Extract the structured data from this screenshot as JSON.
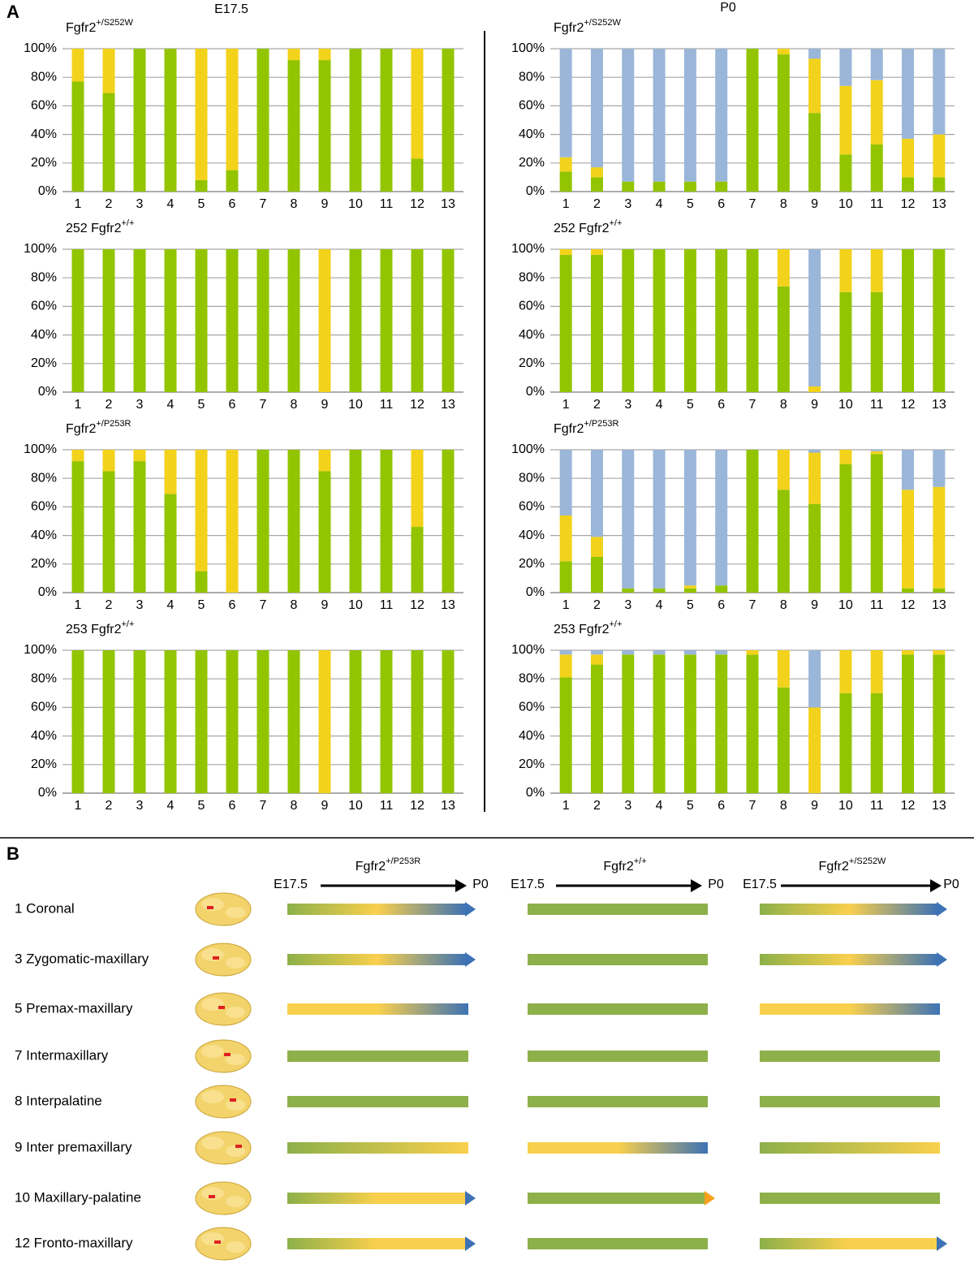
{
  "panel_a": {
    "label": "A",
    "columns": [
      "E17.5",
      "P0"
    ]
  },
  "chart_data": [
    {
      "type": "bar",
      "stacked": true,
      "title": "Fgfr2",
      "title_sup": "+/S252W",
      "categories": [
        "1",
        "2",
        "3",
        "4",
        "5",
        "6",
        "7",
        "8",
        "9",
        "10",
        "11",
        "12",
        "13"
      ],
      "series": [
        {
          "color": "#92c400",
          "values": [
            77,
            69,
            100,
            100,
            8,
            15,
            100,
            92,
            92,
            100,
            100,
            23,
            100
          ]
        },
        {
          "color": "#f2d21b",
          "values": [
            23,
            31,
            0,
            0,
            92,
            85,
            0,
            8,
            8,
            0,
            0,
            77,
            0
          ]
        }
      ],
      "ylim": [
        0,
        100
      ],
      "yticks": [
        {
          "value": 0,
          "label": "0%"
        },
        {
          "value": 20,
          "label": "20%"
        },
        {
          "value": 40,
          "label": "40%"
        },
        {
          "value": 60,
          "label": "60%"
        },
        {
          "value": 80,
          "label": "80%"
        },
        {
          "value": 100,
          "label": "100%"
        }
      ],
      "grid": true
    },
    {
      "type": "bar",
      "stacked": true,
      "title": "Fgfr2",
      "title_sup": "+/S252W",
      "categories": [
        "1",
        "2",
        "3",
        "4",
        "5",
        "6",
        "7",
        "8",
        "9",
        "10",
        "11",
        "12",
        "13"
      ],
      "series": [
        {
          "color": "#92c400",
          "values": [
            14,
            10,
            7,
            7,
            7,
            7,
            100,
            96,
            55,
            26,
            33,
            10,
            10
          ]
        },
        {
          "color": "#f2d21b",
          "values": [
            10,
            7,
            0,
            0,
            0,
            0,
            0,
            4,
            38,
            48,
            45,
            27,
            30
          ]
        },
        {
          "color": "#9ab6d8",
          "values": [
            76,
            83,
            93,
            93,
            93,
            93,
            0,
            0,
            7,
            26,
            22,
            63,
            60
          ]
        }
      ],
      "ylim": [
        0,
        100
      ],
      "yticks": [
        {
          "value": 0,
          "label": "0%"
        },
        {
          "value": 20,
          "label": "20%"
        },
        {
          "value": 40,
          "label": "40%"
        },
        {
          "value": 60,
          "label": "60%"
        },
        {
          "value": 80,
          "label": "80%"
        },
        {
          "value": 100,
          "label": "100%"
        }
      ],
      "grid": true
    },
    {
      "type": "bar",
      "stacked": true,
      "title": "252 Fgfr2",
      "title_sup": "+/+",
      "categories": [
        "1",
        "2",
        "3",
        "4",
        "5",
        "6",
        "7",
        "8",
        "9",
        "10",
        "11",
        "12",
        "13"
      ],
      "series": [
        {
          "color": "#92c400",
          "values": [
            100,
            100,
            100,
            100,
            100,
            100,
            100,
            100,
            0,
            100,
            100,
            100,
            100
          ]
        },
        {
          "color": "#f2d21b",
          "values": [
            0,
            0,
            0,
            0,
            0,
            0,
            0,
            0,
            100,
            0,
            0,
            0,
            0
          ]
        }
      ],
      "ylim": [
        0,
        100
      ],
      "yticks": [
        {
          "value": 0,
          "label": "0%"
        },
        {
          "value": 20,
          "label": "20%"
        },
        {
          "value": 40,
          "label": "40%"
        },
        {
          "value": 60,
          "label": "60%"
        },
        {
          "value": 80,
          "label": "80%"
        },
        {
          "value": 100,
          "label": "100%"
        }
      ],
      "grid": true
    },
    {
      "type": "bar",
      "stacked": true,
      "title": "252 Fgfr2",
      "title_sup": "+/+",
      "categories": [
        "1",
        "2",
        "3",
        "4",
        "5",
        "6",
        "7",
        "8",
        "9",
        "10",
        "11",
        "12",
        "13"
      ],
      "series": [
        {
          "color": "#92c400",
          "values": [
            96,
            96,
            100,
            100,
            100,
            100,
            100,
            74,
            0,
            70,
            70,
            100,
            100
          ]
        },
        {
          "color": "#f2d21b",
          "values": [
            4,
            4,
            0,
            0,
            0,
            0,
            0,
            26,
            4,
            30,
            30,
            0,
            0
          ]
        },
        {
          "color": "#9ab6d8",
          "values": [
            0,
            0,
            0,
            0,
            0,
            0,
            0,
            0,
            96,
            0,
            0,
            0,
            0
          ]
        }
      ],
      "ylim": [
        0,
        100
      ],
      "yticks": [
        {
          "value": 0,
          "label": "0%"
        },
        {
          "value": 20,
          "label": "20%"
        },
        {
          "value": 40,
          "label": "40%"
        },
        {
          "value": 60,
          "label": "60%"
        },
        {
          "value": 80,
          "label": "80%"
        },
        {
          "value": 100,
          "label": "100%"
        }
      ],
      "grid": true
    },
    {
      "type": "bar",
      "stacked": true,
      "title": "Fgfr2",
      "title_sup": "+/P253R",
      "categories": [
        "1",
        "2",
        "3",
        "4",
        "5",
        "6",
        "7",
        "8",
        "9",
        "10",
        "11",
        "12",
        "13"
      ],
      "series": [
        {
          "color": "#92c400",
          "values": [
            92,
            85,
            92,
            69,
            15,
            0,
            100,
            100,
            85,
            100,
            100,
            46,
            100
          ]
        },
        {
          "color": "#f2d21b",
          "values": [
            8,
            15,
            8,
            31,
            85,
            100,
            0,
            0,
            15,
            0,
            0,
            54,
            0
          ]
        }
      ],
      "ylim": [
        0,
        100
      ],
      "yticks": [
        {
          "value": 0,
          "label": "0%"
        },
        {
          "value": 20,
          "label": "20%"
        },
        {
          "value": 40,
          "label": "40%"
        },
        {
          "value": 60,
          "label": "60%"
        },
        {
          "value": 80,
          "label": "80%"
        },
        {
          "value": 100,
          "label": "100%"
        }
      ],
      "grid": true
    },
    {
      "type": "bar",
      "stacked": true,
      "title": "Fgfr2",
      "title_sup": "+/P253R",
      "categories": [
        "1",
        "2",
        "3",
        "4",
        "5",
        "6",
        "7",
        "8",
        "9",
        "10",
        "11",
        "12",
        "13"
      ],
      "series": [
        {
          "color": "#92c400",
          "values": [
            22,
            25,
            3,
            3,
            3,
            5,
            100,
            72,
            62,
            90,
            97,
            3,
            3
          ]
        },
        {
          "color": "#f2d21b",
          "values": [
            32,
            14,
            0,
            0,
            2,
            0,
            0,
            28,
            36,
            10,
            2,
            69,
            71
          ]
        },
        {
          "color": "#9ab6d8",
          "values": [
            46,
            61,
            97,
            97,
            95,
            95,
            0,
            0,
            2,
            0,
            1,
            28,
            26
          ]
        }
      ],
      "ylim": [
        0,
        100
      ],
      "yticks": [
        {
          "value": 0,
          "label": "0%"
        },
        {
          "value": 20,
          "label": "20%"
        },
        {
          "value": 40,
          "label": "40%"
        },
        {
          "value": 60,
          "label": "60%"
        },
        {
          "value": 80,
          "label": "80%"
        },
        {
          "value": 100,
          "label": "100%"
        }
      ],
      "grid": true
    },
    {
      "type": "bar",
      "stacked": true,
      "title": "253 Fgfr2",
      "title_sup": "+/+",
      "categories": [
        "1",
        "2",
        "3",
        "4",
        "5",
        "6",
        "7",
        "8",
        "9",
        "10",
        "11",
        "12",
        "13"
      ],
      "series": [
        {
          "color": "#92c400",
          "values": [
            100,
            100,
            100,
            100,
            100,
            100,
            100,
            100,
            0,
            100,
            100,
            100,
            100
          ]
        },
        {
          "color": "#f2d21b",
          "values": [
            0,
            0,
            0,
            0,
            0,
            0,
            0,
            0,
            100,
            0,
            0,
            0,
            0
          ]
        }
      ],
      "ylim": [
        0,
        100
      ],
      "yticks": [
        {
          "value": 0,
          "label": "0%"
        },
        {
          "value": 20,
          "label": "20%"
        },
        {
          "value": 40,
          "label": "40%"
        },
        {
          "value": 60,
          "label": "60%"
        },
        {
          "value": 80,
          "label": "80%"
        },
        {
          "value": 100,
          "label": "100%"
        }
      ],
      "grid": true
    },
    {
      "type": "bar",
      "stacked": true,
      "title": "253 Fgfr2",
      "title_sup": "+/+",
      "categories": [
        "1",
        "2",
        "3",
        "4",
        "5",
        "6",
        "7",
        "8",
        "9",
        "10",
        "11",
        "12",
        "13"
      ],
      "series": [
        {
          "color": "#92c400",
          "values": [
            81,
            90,
            97,
            97,
            97,
            97,
            97,
            74,
            0,
            70,
            70,
            97,
            97
          ]
        },
        {
          "color": "#f2d21b",
          "values": [
            16,
            7,
            0,
            0,
            0,
            0,
            3,
            26,
            60,
            30,
            30,
            3,
            3
          ]
        },
        {
          "color": "#9ab6d8",
          "values": [
            3,
            3,
            3,
            3,
            3,
            3,
            0,
            0,
            40,
            0,
            0,
            0,
            0
          ]
        }
      ],
      "ylim": [
        0,
        100
      ],
      "yticks": [
        {
          "value": 0,
          "label": "0%"
        },
        {
          "value": 20,
          "label": "20%"
        },
        {
          "value": 40,
          "label": "40%"
        },
        {
          "value": 60,
          "label": "60%"
        },
        {
          "value": 80,
          "label": "80%"
        },
        {
          "value": 100,
          "label": "100%"
        }
      ],
      "grid": true
    }
  ],
  "panel_b": {
    "label": "B",
    "columns": [
      {
        "genotype": "Fgfr2",
        "genotype_sup": "+/P253R",
        "start": "E17.5",
        "end": "P0"
      },
      {
        "genotype": "Fgfr2",
        "genotype_sup": "+/+",
        "start": "E17.5",
        "end": "P0"
      },
      {
        "genotype": "Fgfr2",
        "genotype_sup": "+/S252W",
        "start": "E17.5",
        "end": "P0"
      }
    ],
    "rows": [
      {
        "label": "1 Coronal",
        "cells": [
          {
            "colors": [
              "#8db04a",
              "#f9d04d",
              "#3d72b4"
            ],
            "arrow": "#3d72b4"
          },
          {
            "colors": [
              "#8db04a"
            ]
          },
          {
            "colors": [
              "#8db04a",
              "#f9d04d",
              "#3d72b4"
            ],
            "arrow": "#3d72b4"
          }
        ]
      },
      {
        "label": "3 Zygomatic-maxillary",
        "cells": [
          {
            "colors": [
              "#8db04a",
              "#f9d04d",
              "#3d72b4"
            ],
            "arrow": "#3d72b4"
          },
          {
            "colors": [
              "#8db04a"
            ]
          },
          {
            "colors": [
              "#8db04a",
              "#f9d04d",
              "#3d72b4"
            ],
            "arrow": "#3d72b4"
          }
        ]
      },
      {
        "label": "5 Premax-maxillary",
        "cells": [
          {
            "colors": [
              "#f9d04d",
              "#f9d04d",
              "#3d72b4"
            ]
          },
          {
            "colors": [
              "#8db04a"
            ]
          },
          {
            "colors": [
              "#f9d04d",
              "#f9d04d",
              "#3d72b4"
            ]
          }
        ]
      },
      {
        "label": "7 Intermaxillary",
        "cells": [
          {
            "colors": [
              "#8db04a"
            ]
          },
          {
            "colors": [
              "#8db04a"
            ]
          },
          {
            "colors": [
              "#8db04a"
            ]
          }
        ]
      },
      {
        "label": "8 Interpalatine",
        "cells": [
          {
            "colors": [
              "#8db04a"
            ]
          },
          {
            "colors": [
              "#8db04a"
            ]
          },
          {
            "colors": [
              "#8db04a"
            ]
          }
        ]
      },
      {
        "label": "9 Inter premaxillary",
        "cells": [
          {
            "colors": [
              "#8db04a",
              "#f9d04d"
            ]
          },
          {
            "colors": [
              "#f9d04d",
              "#f9d04d",
              "#3d72b4"
            ]
          },
          {
            "colors": [
              "#8db04a",
              "#f9d04d"
            ]
          }
        ]
      },
      {
        "label": "10 Maxillary-palatine",
        "cells": [
          {
            "colors": [
              "#8db04a",
              "#f9d04d",
              "#f9d04d"
            ],
            "arrow": "#3d72b4"
          },
          {
            "colors": [
              "#8db04a",
              "#8db04a",
              "#8db04a"
            ],
            "arrow": "#f7a11f"
          },
          {
            "colors": [
              "#8db04a"
            ]
          }
        ]
      },
      {
        "label": "12 Fronto-maxillary",
        "cells": [
          {
            "colors": [
              "#8db04a",
              "#f9d04d",
              "#f9d04d"
            ],
            "arrow": "#3d72b4"
          },
          {
            "colors": [
              "#8db04a"
            ]
          },
          {
            "colors": [
              "#8db04a",
              "#f9d04d",
              "#f9d04d"
            ],
            "arrow": "#3d72b4"
          }
        ]
      }
    ]
  }
}
